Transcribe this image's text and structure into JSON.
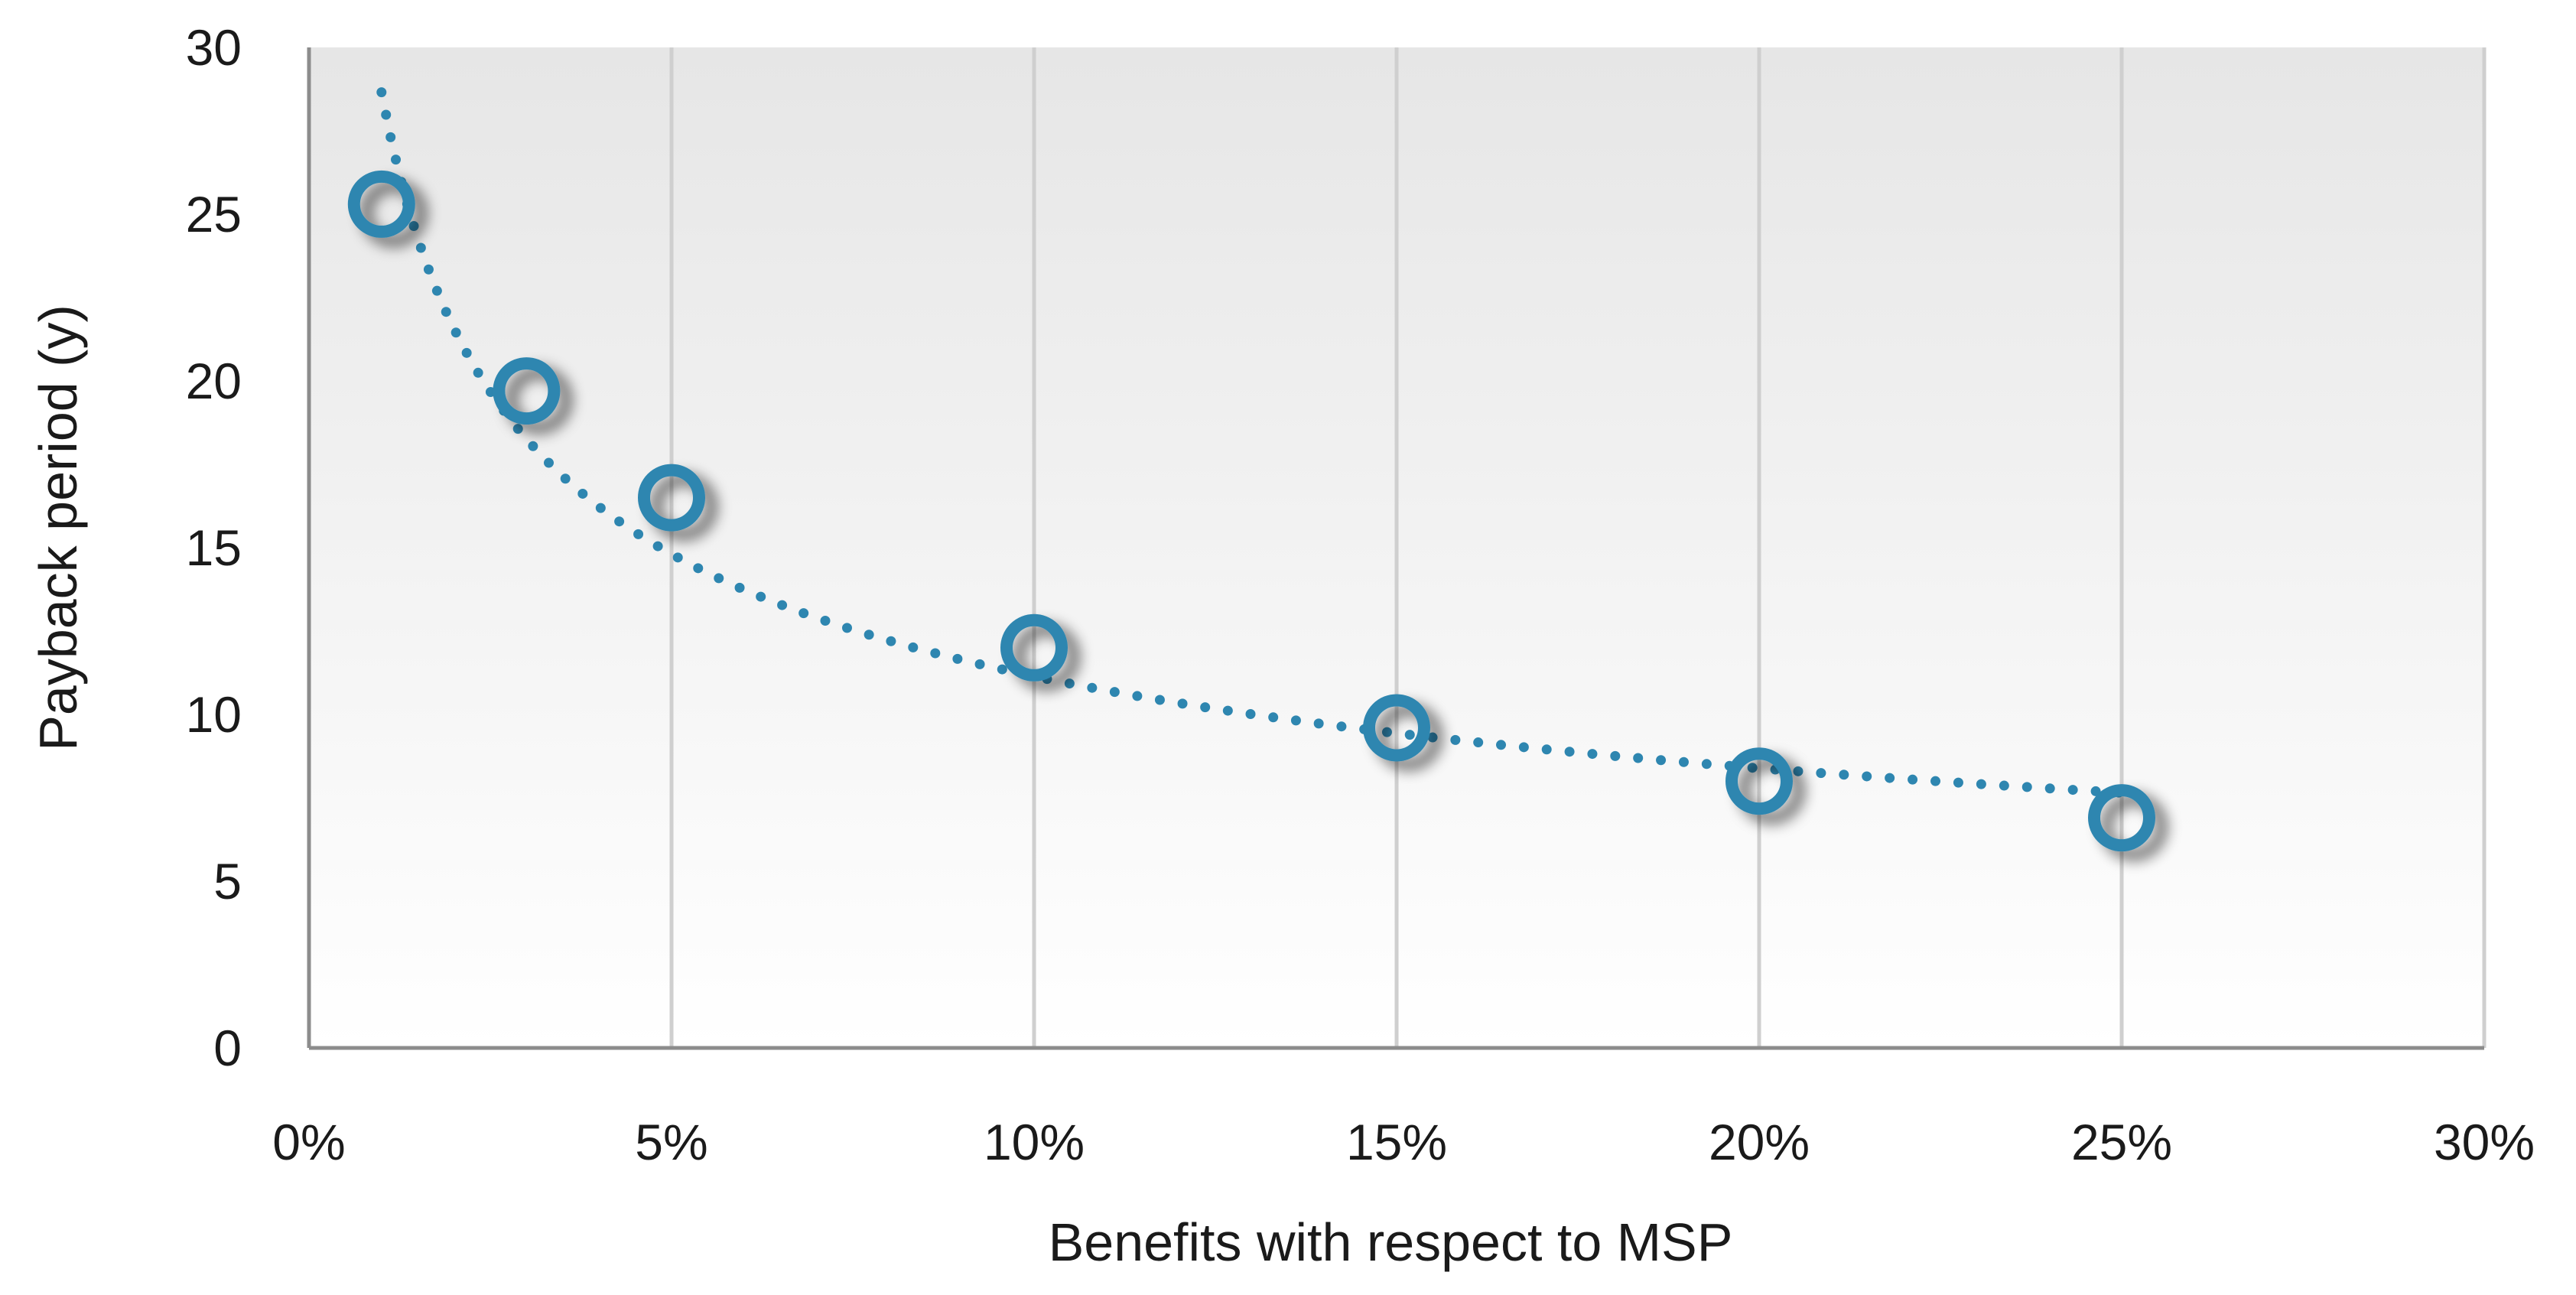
{
  "chart_data": {
    "type": "scatter",
    "title": "",
    "xlabel": "Benefits with respect to MSP",
    "ylabel": "Payback period (y)",
    "xlim": [
      0,
      30
    ],
    "ylim": [
      0,
      30
    ],
    "x_ticks": [
      {
        "value": 0,
        "label": "0%"
      },
      {
        "value": 5,
        "label": "5%"
      },
      {
        "value": 10,
        "label": "10%"
      },
      {
        "value": 15,
        "label": "15%"
      },
      {
        "value": 20,
        "label": "20%"
      },
      {
        "value": 25,
        "label": "25%"
      },
      {
        "value": 30,
        "label": "30%"
      }
    ],
    "y_ticks": [
      {
        "value": 0,
        "label": "0"
      },
      {
        "value": 5,
        "label": "5"
      },
      {
        "value": 10,
        "label": "10"
      },
      {
        "value": 15,
        "label": "15"
      },
      {
        "value": 20,
        "label": "20"
      },
      {
        "value": 25,
        "label": "25"
      },
      {
        "value": 30,
        "label": "30"
      }
    ],
    "grid": "vertical",
    "series": [
      {
        "name": "Payback period",
        "color": "#2e86b0",
        "marker": "hollow-circle",
        "points": [
          {
            "x": 1,
            "y": 25.3
          },
          {
            "x": 3,
            "y": 19.7
          },
          {
            "x": 5,
            "y": 16.5
          },
          {
            "x": 10,
            "y": 12.0
          },
          {
            "x": 15,
            "y": 9.6
          },
          {
            "x": 20,
            "y": 8.0
          },
          {
            "x": 25,
            "y": 6.9
          }
        ]
      }
    ],
    "trendline": {
      "style": "dotted",
      "kind": "power",
      "color": "#2e86b0"
    }
  }
}
